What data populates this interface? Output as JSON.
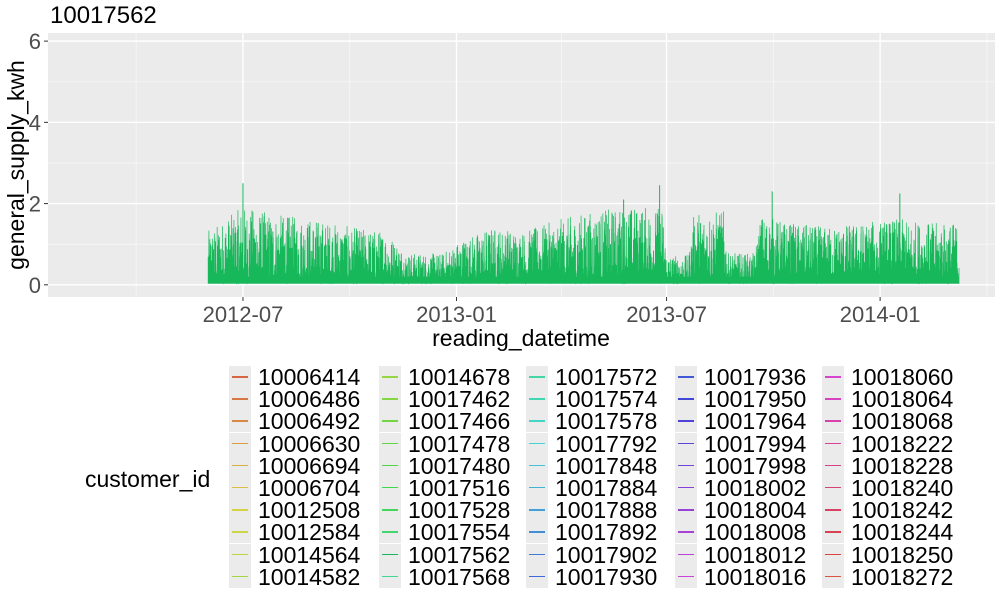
{
  "chart_data": {
    "type": "line",
    "title": "10017562",
    "xlabel": "reading_datetime",
    "ylabel": "general_supply_kwh",
    "xlim": [
      "2012-01-15",
      "2014-04-10"
    ],
    "ylim": [
      -0.3,
      6.2
    ],
    "x_ticks": [
      "2012-07-01",
      "2013-01-01",
      "2013-07-01",
      "2014-01-01"
    ],
    "x_tick_labels": [
      "2012-07",
      "2013-01",
      "2013-07",
      "2014-01"
    ],
    "y_ticks": [
      0,
      2,
      4,
      6
    ],
    "y_tick_labels": [
      "0",
      "2",
      "4",
      "6"
    ],
    "grid": true,
    "background": "#ebebeb",
    "series_color": "#16b85a",
    "series": [
      {
        "name": "10017562",
        "start": "2012-06-01",
        "end": "2014-03-10",
        "baseline": 0.03,
        "envelope": [
          [
            "2012-06-01",
            1.3
          ],
          [
            "2012-07-01",
            1.9
          ],
          [
            "2012-08-01",
            1.7
          ],
          [
            "2012-09-01",
            1.6
          ],
          [
            "2012-10-01",
            1.4
          ],
          [
            "2012-11-01",
            1.3
          ],
          [
            "2012-11-20",
            0.75
          ],
          [
            "2012-12-20",
            0.75
          ],
          [
            "2013-01-05",
            1.1
          ],
          [
            "2013-02-01",
            1.4
          ],
          [
            "2013-03-01",
            1.3
          ],
          [
            "2013-04-01",
            1.6
          ],
          [
            "2013-05-01",
            1.8
          ],
          [
            "2013-06-01",
            1.9
          ],
          [
            "2013-06-28",
            1.9
          ],
          [
            "2013-07-01",
            0.7
          ],
          [
            "2013-07-20",
            0.7
          ],
          [
            "2013-07-25",
            1.8
          ],
          [
            "2013-08-20",
            1.8
          ],
          [
            "2013-08-22",
            0.75
          ],
          [
            "2013-09-15",
            0.75
          ],
          [
            "2013-09-20",
            1.7
          ],
          [
            "2013-10-15",
            1.5
          ],
          [
            "2013-11-15",
            1.4
          ],
          [
            "2013-12-15",
            1.5
          ],
          [
            "2014-01-15",
            1.6
          ],
          [
            "2014-02-15",
            1.5
          ],
          [
            "2014-03-10",
            1.5
          ]
        ],
        "peaks": [
          [
            "2012-07-01",
            2.5
          ],
          [
            "2013-06-25",
            2.45
          ],
          [
            "2013-09-30",
            2.3
          ],
          [
            "2014-01-18",
            2.25
          ],
          [
            "2013-05-25",
            2.1
          ]
        ]
      }
    ],
    "legend": {
      "title": "customer_id",
      "position": "bottom",
      "columns": [
        [
          "10006414",
          "10006486",
          "10006492",
          "10006630",
          "10006694",
          "10006704",
          "10012508",
          "10012584",
          "10014564",
          "10014582"
        ],
        [
          "10014678",
          "10017462",
          "10017466",
          "10017478",
          "10017480",
          "10017516",
          "10017528",
          "10017554",
          "10017562",
          "10017568"
        ],
        [
          "10017572",
          "10017574",
          "10017578",
          "10017792",
          "10017848",
          "10017884",
          "10017888",
          "10017892",
          "10017902",
          "10017930"
        ],
        [
          "10017936",
          "10017950",
          "10017964",
          "10017994",
          "10017998",
          "10018002",
          "10018004",
          "10018008",
          "10018012",
          "10018016"
        ],
        [
          "10018060",
          "10018064",
          "10018068",
          "10018222",
          "10018228",
          "10018240",
          "10018242",
          "10018244",
          "10018250",
          "10018272"
        ]
      ]
    }
  }
}
